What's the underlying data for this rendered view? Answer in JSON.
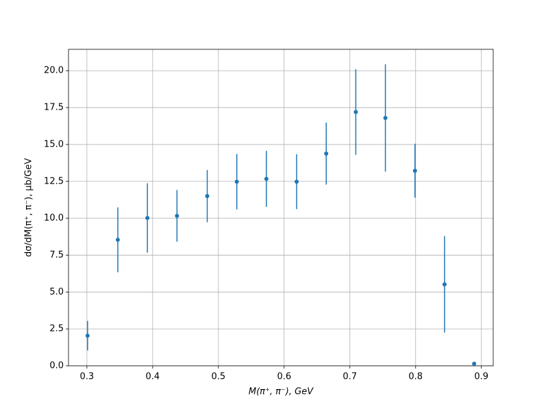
{
  "chart_data": {
    "type": "errorbar",
    "x_label": "M(π⁺, π⁻), GeV",
    "y_label": "dσ/dM(π⁺, π⁻), μb/GeV",
    "grid": true,
    "xlim": [
      0.272,
      0.918
    ],
    "ylim": [
      0,
      21.45
    ],
    "xticks": [
      0.3,
      0.4,
      0.5,
      0.6,
      0.7,
      0.8,
      0.9
    ],
    "yticks": [
      {
        "value": 0,
        "label": "0.0"
      },
      {
        "value": 2.5,
        "label": "2.5"
      },
      {
        "value": 5,
        "label": "5.0"
      },
      {
        "value": 7.5,
        "label": "7.5"
      },
      {
        "value": 10,
        "label": "10.0"
      },
      {
        "value": 12.5,
        "label": "12.5"
      },
      {
        "value": 15,
        "label": "15.0"
      },
      {
        "value": 17.5,
        "label": "17.5"
      },
      {
        "value": 20,
        "label": "20.0"
      }
    ],
    "series": [
      {
        "color": "#1f77b4",
        "x": [
          0.301,
          0.347,
          0.392,
          0.437,
          0.483,
          0.528,
          0.573,
          0.619,
          0.664,
          0.709,
          0.754,
          0.799,
          0.844,
          0.889
        ],
        "values": [
          2.04,
          8.54,
          10.02,
          10.16,
          11.5,
          12.48,
          12.67,
          12.48,
          14.38,
          17.2,
          16.8,
          13.22,
          5.52,
          0.14
        ],
        "errors": [
          1.0,
          2.2,
          2.35,
          1.75,
          1.77,
          1.88,
          1.9,
          1.86,
          2.1,
          2.9,
          3.64,
          1.83,
          3.27,
          0.05
        ]
      }
    ]
  }
}
